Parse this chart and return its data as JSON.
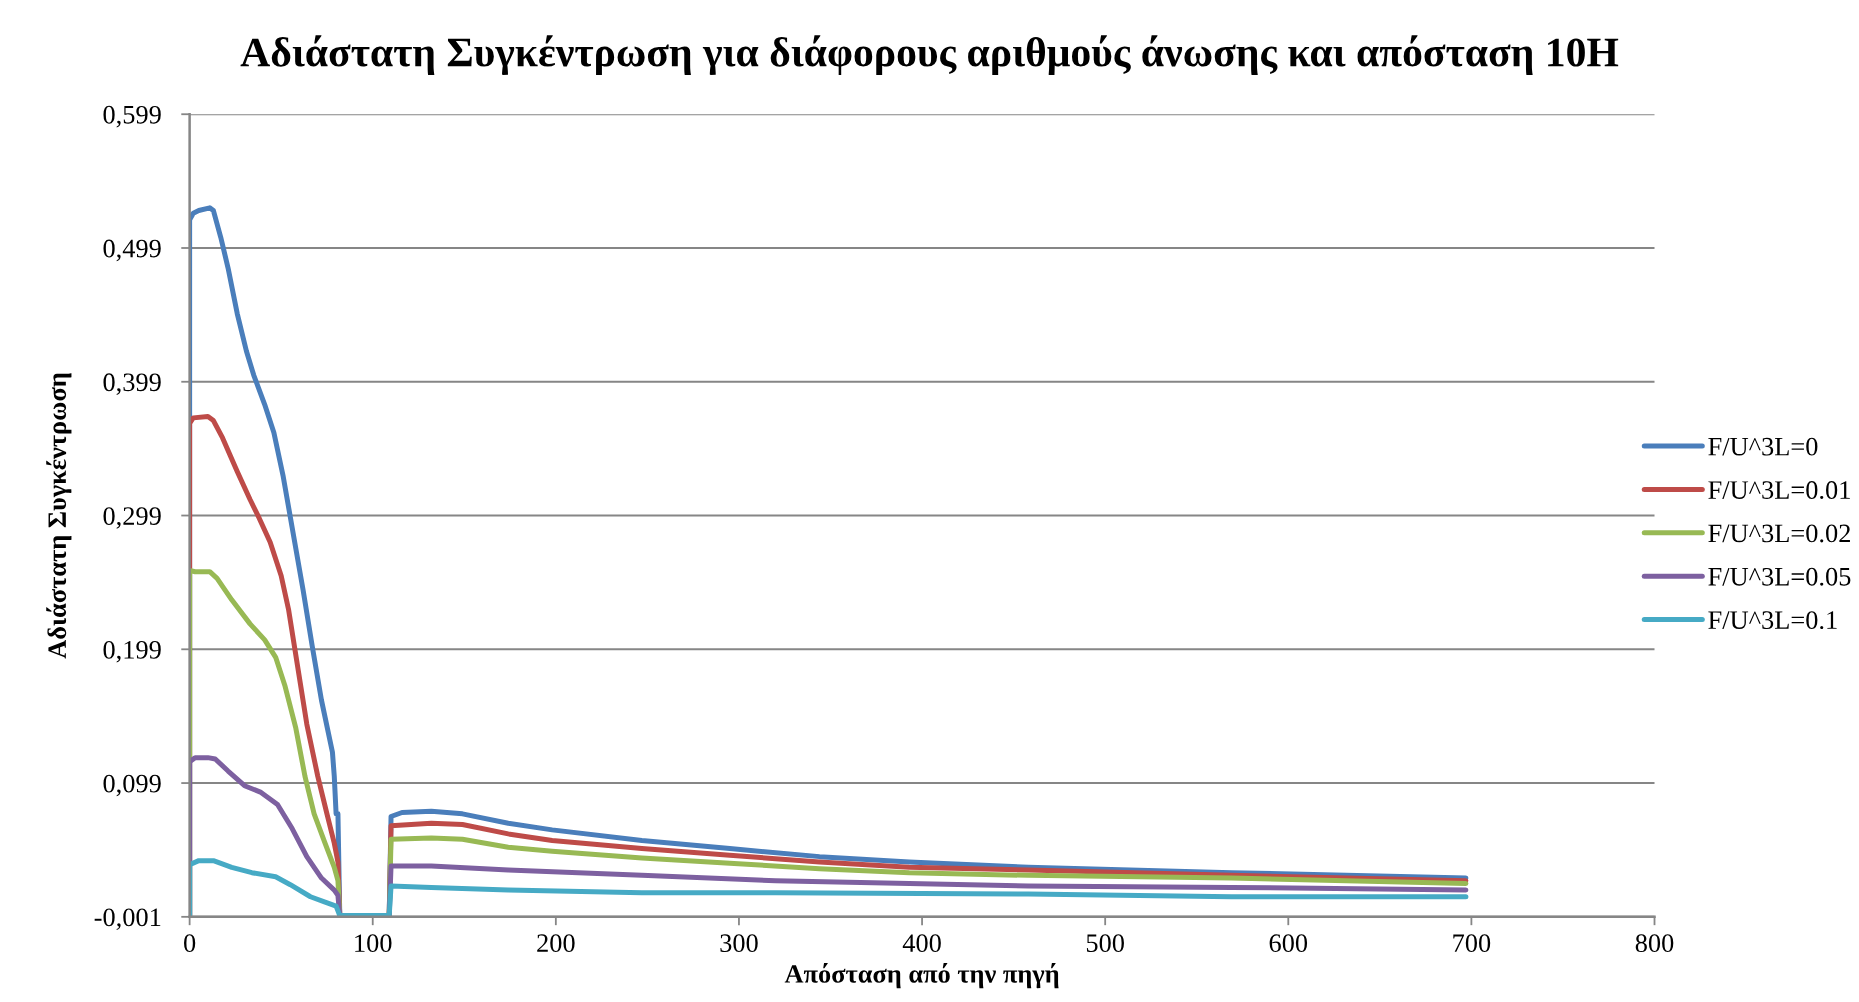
{
  "chart_data": {
    "type": "line",
    "title": "Αδιάστατη Συγκέντρωση για διάφορους αριθμούς άνωσης και απόσταση 10Η",
    "xlabel": "Απόσταση από την πηγή",
    "ylabel": "Αδιάστατη Συγκέντρωση",
    "xlim": [
      0,
      800
    ],
    "xticks": [
      0,
      100,
      200,
      300,
      400,
      500,
      600,
      700,
      800
    ],
    "ylim": [
      -0.001,
      0.599
    ],
    "yticks": [
      {
        "value": -0.001,
        "label": "-0,001"
      },
      {
        "value": 0.099,
        "label": "0,099"
      },
      {
        "value": 0.199,
        "label": "0,199"
      },
      {
        "value": 0.299,
        "label": "0,299"
      },
      {
        "value": 0.399,
        "label": "0,399"
      },
      {
        "value": 0.499,
        "label": "0,499"
      },
      {
        "value": 0.599,
        "label": "0,599"
      }
    ],
    "grid": "y",
    "legend": "right",
    "series": [
      {
        "name": "F/U^3L=0",
        "color": "#4a7ebb",
        "x": [
          0,
          0,
          2,
          5,
          11,
          13,
          17,
          21,
          26,
          31,
          35,
          41,
          46,
          51,
          56,
          62,
          67,
          72,
          78,
          79,
          80,
          81,
          82,
          109,
          110,
          116,
          132,
          149,
          174,
          198,
          247,
          295,
          344,
          393,
          458,
          569,
          697
        ],
        "values": [
          0,
          0.52,
          0.525,
          0.527,
          0.529,
          0.527,
          0.507,
          0.484,
          0.45,
          0.422,
          0.404,
          0.382,
          0.361,
          0.329,
          0.29,
          0.243,
          0.201,
          0.161,
          0.122,
          0.104,
          0.076,
          0.076,
          0,
          0,
          0.074,
          0.077,
          0.078,
          0.076,
          0.069,
          0.064,
          0.056,
          0.05,
          0.044,
          0.04,
          0.036,
          0.032,
          0.028
        ]
      },
      {
        "name": "F/U^3L=0.01",
        "color": "#be4b48",
        "x": [
          0,
          0,
          2,
          10,
          13,
          18,
          26,
          33,
          38,
          44,
          50,
          54,
          59,
          64,
          70,
          75,
          79,
          81,
          82,
          109,
          110,
          132,
          149,
          174,
          198,
          247,
          295,
          344,
          393,
          458,
          569,
          697
        ],
        "values": [
          0,
          0.368,
          0.372,
          0.373,
          0.37,
          0.357,
          0.332,
          0.311,
          0.297,
          0.279,
          0.254,
          0.229,
          0.186,
          0.143,
          0.104,
          0.076,
          0.054,
          0.04,
          0,
          0,
          0.067,
          0.069,
          0.068,
          0.061,
          0.056,
          0.05,
          0.045,
          0.04,
          0.036,
          0.034,
          0.03,
          0.026
        ]
      },
      {
        "name": "F/U^3L=0.02",
        "color": "#98b954",
        "x": [
          0,
          0,
          3,
          11,
          15,
          23,
          33,
          41,
          47,
          52,
          58,
          63,
          68,
          74,
          79,
          81,
          82,
          109,
          110,
          132,
          149,
          174,
          198,
          247,
          295,
          344,
          393,
          458,
          569,
          697
        ],
        "values": [
          0,
          0.258,
          0.257,
          0.257,
          0.252,
          0.236,
          0.218,
          0.206,
          0.193,
          0.172,
          0.14,
          0.104,
          0.076,
          0.054,
          0.036,
          0.026,
          0,
          0,
          0.057,
          0.058,
          0.057,
          0.051,
          0.048,
          0.043,
          0.039,
          0.035,
          0.032,
          0.03,
          0.028,
          0.024
        ]
      },
      {
        "name": "F/U^3L=0.05",
        "color": "#7d60a0",
        "x": [
          0,
          0,
          3,
          10,
          14,
          21,
          30,
          39,
          48,
          56,
          64,
          72,
          79,
          81,
          82,
          109,
          110,
          132,
          174,
          247,
          320,
          393,
          458,
          569,
          697
        ],
        "values": [
          0,
          0.115,
          0.118,
          0.118,
          0.117,
          0.108,
          0.097,
          0.092,
          0.083,
          0.065,
          0.044,
          0.028,
          0.019,
          0.015,
          0,
          0,
          0.037,
          0.037,
          0.034,
          0.03,
          0.026,
          0.024,
          0.022,
          0.021,
          0.019
        ]
      },
      {
        "name": "F/U^3L=0.1",
        "color": "#46aac5",
        "x": [
          0,
          0,
          5,
          13,
          23,
          34,
          47,
          55,
          66,
          74,
          80,
          82,
          109,
          110,
          132,
          174,
          247,
          320,
          458,
          569,
          697
        ],
        "values": [
          0,
          0.038,
          0.041,
          0.041,
          0.036,
          0.032,
          0.029,
          0.023,
          0.014,
          0.01,
          0.007,
          0,
          0,
          0.022,
          0.021,
          0.019,
          0.017,
          0.017,
          0.016,
          0.014,
          0.014
        ]
      }
    ]
  }
}
